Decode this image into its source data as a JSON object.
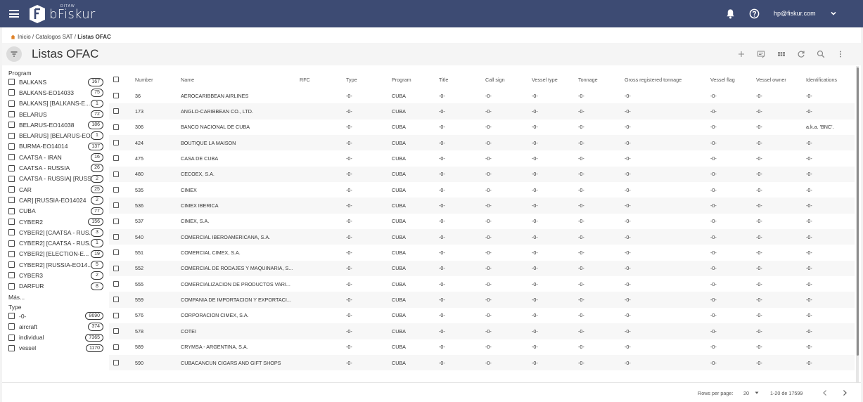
{
  "header": {
    "brand_sub": "DITAW",
    "brand_name": "bFiskur",
    "user_email": "hp@fiskur.com"
  },
  "breadcrumb": {
    "home": "Inicio",
    "middle": "Catalogos SAT",
    "current": "Listas OFAC"
  },
  "page": {
    "title": "Listas OFAC"
  },
  "sidebar": {
    "program_title": "Program",
    "programs": [
      {
        "label": "BALKANS",
        "count": "167"
      },
      {
        "label": "BALKANS-EO14033",
        "count": "75"
      },
      {
        "label": "BALKANS] [BALKANS-E...",
        "count": "1"
      },
      {
        "label": "BELARUS",
        "count": "72"
      },
      {
        "label": "BELARUS-EO14038",
        "count": "186"
      },
      {
        "label": "BELARUS] [BELARUS-EO...",
        "count": "1"
      },
      {
        "label": "BURMA-EO14014",
        "count": "137"
      },
      {
        "label": "CAATSA - IRAN",
        "count": "16"
      },
      {
        "label": "CAATSA - RUSSIA",
        "count": "26"
      },
      {
        "label": "CAATSA - RUSSIA] [RUSS...",
        "count": "2"
      },
      {
        "label": "CAR",
        "count": "25"
      },
      {
        "label": "CAR] [RUSSIA-EO14024",
        "count": "2"
      },
      {
        "label": "CUBA",
        "count": "77"
      },
      {
        "label": "CYBER2",
        "count": "156"
      },
      {
        "label": "CYBER2] [CAATSA - RUS...",
        "count": "3"
      },
      {
        "label": "CYBER2] [CAATSA - RUS...",
        "count": "1"
      },
      {
        "label": "CYBER2] [ELECTION-E...",
        "count": "19"
      },
      {
        "label": "CYBER2] [RUSSIA-EO14...",
        "count": "5"
      },
      {
        "label": "CYBER3",
        "count": "2"
      },
      {
        "label": "DARFUR",
        "count": "8"
      }
    ],
    "more_label": "Más...",
    "type_title": "Type",
    "types": [
      {
        "label": "-0-",
        "count": "8690"
      },
      {
        "label": "aircraft",
        "count": "374"
      },
      {
        "label": "individual",
        "count": "7365"
      },
      {
        "label": "vessel",
        "count": "1170"
      }
    ]
  },
  "table": {
    "columns": [
      "Number",
      "Name",
      "RFC",
      "Type",
      "Program",
      "Title",
      "Call sign",
      "Vessel type",
      "Tonnage",
      "Gross registered tonnage",
      "Vessel flag",
      "Vessel owner",
      "Identifications"
    ],
    "rows": [
      [
        "36",
        "AEROCARIBBEAN AIRLINES",
        "",
        "-0-",
        "CUBA",
        "-0-",
        "-0-",
        "-0-",
        "-0-",
        "-0-",
        "-0-",
        "-0-",
        "-0-"
      ],
      [
        "173",
        "ANGLO-CARIBBEAN CO., LTD.",
        "",
        "-0-",
        "CUBA",
        "-0-",
        "-0-",
        "-0-",
        "-0-",
        "-0-",
        "-0-",
        "-0-",
        "-0-"
      ],
      [
        "306",
        "BANCO NACIONAL DE CUBA",
        "",
        "-0-",
        "CUBA",
        "-0-",
        "-0-",
        "-0-",
        "-0-",
        "-0-",
        "-0-",
        "-0-",
        "a.k.a. 'BNC'."
      ],
      [
        "424",
        "BOUTIQUE LA MAISON",
        "",
        "-0-",
        "CUBA",
        "-0-",
        "-0-",
        "-0-",
        "-0-",
        "-0-",
        "-0-",
        "-0-",
        "-0-"
      ],
      [
        "475",
        "CASA DE CUBA",
        "",
        "-0-",
        "CUBA",
        "-0-",
        "-0-",
        "-0-",
        "-0-",
        "-0-",
        "-0-",
        "-0-",
        "-0-"
      ],
      [
        "480",
        "CECOEX, S.A.",
        "",
        "-0-",
        "CUBA",
        "-0-",
        "-0-",
        "-0-",
        "-0-",
        "-0-",
        "-0-",
        "-0-",
        "-0-"
      ],
      [
        "535",
        "CIMEX",
        "",
        "-0-",
        "CUBA",
        "-0-",
        "-0-",
        "-0-",
        "-0-",
        "-0-",
        "-0-",
        "-0-",
        "-0-"
      ],
      [
        "536",
        "CIMEX IBERICA",
        "",
        "-0-",
        "CUBA",
        "-0-",
        "-0-",
        "-0-",
        "-0-",
        "-0-",
        "-0-",
        "-0-",
        "-0-"
      ],
      [
        "537",
        "CIMEX, S.A.",
        "",
        "-0-",
        "CUBA",
        "-0-",
        "-0-",
        "-0-",
        "-0-",
        "-0-",
        "-0-",
        "-0-",
        "-0-"
      ],
      [
        "540",
        "COMERCIAL IBEROAMERICANA, S.A.",
        "",
        "-0-",
        "CUBA",
        "-0-",
        "-0-",
        "-0-",
        "-0-",
        "-0-",
        "-0-",
        "-0-",
        "-0-"
      ],
      [
        "551",
        "COMERCIAL CIMEX, S.A.",
        "",
        "-0-",
        "CUBA",
        "-0-",
        "-0-",
        "-0-",
        "-0-",
        "-0-",
        "-0-",
        "-0-",
        "-0-"
      ],
      [
        "552",
        "COMERCIAL DE RODAJES Y MAQUINARIA, S...",
        "",
        "-0-",
        "CUBA",
        "-0-",
        "-0-",
        "-0-",
        "-0-",
        "-0-",
        "-0-",
        "-0-",
        "-0-"
      ],
      [
        "555",
        "COMERCIALIZACION DE PRODUCTOS VARI...",
        "",
        "-0-",
        "CUBA",
        "-0-",
        "-0-",
        "-0-",
        "-0-",
        "-0-",
        "-0-",
        "-0-",
        "-0-"
      ],
      [
        "559",
        "COMPANIA DE IMPORTACION Y EXPORTACI...",
        "",
        "-0-",
        "CUBA",
        "-0-",
        "-0-",
        "-0-",
        "-0-",
        "-0-",
        "-0-",
        "-0-",
        "-0-"
      ],
      [
        "576",
        "CORPORACION CIMEX, S.A.",
        "",
        "-0-",
        "CUBA",
        "-0-",
        "-0-",
        "-0-",
        "-0-",
        "-0-",
        "-0-",
        "-0-",
        "-0-"
      ],
      [
        "578",
        "COTEI",
        "",
        "-0-",
        "CUBA",
        "-0-",
        "-0-",
        "-0-",
        "-0-",
        "-0-",
        "-0-",
        "-0-",
        "-0-"
      ],
      [
        "589",
        "CRYMSA - ARGENTINA, S.A.",
        "",
        "-0-",
        "CUBA",
        "-0-",
        "-0-",
        "-0-",
        "-0-",
        "-0-",
        "-0-",
        "-0-",
        "-0-"
      ],
      [
        "590",
        "CUBACANCUN CIGARS AND GIFT SHOPS",
        "",
        "-0-",
        "CUBA",
        "-0-",
        "-0-",
        "-0-",
        "-0-",
        "-0-",
        "-0-",
        "-0-",
        "-0-"
      ]
    ]
  },
  "footer": {
    "rows_per_page_label": "Rows per page:",
    "rows_per_page_value": "20",
    "range": "1-20 de 17599"
  },
  "colors": {
    "topbar": "#3d4b73",
    "background": "#f3f3f3"
  }
}
